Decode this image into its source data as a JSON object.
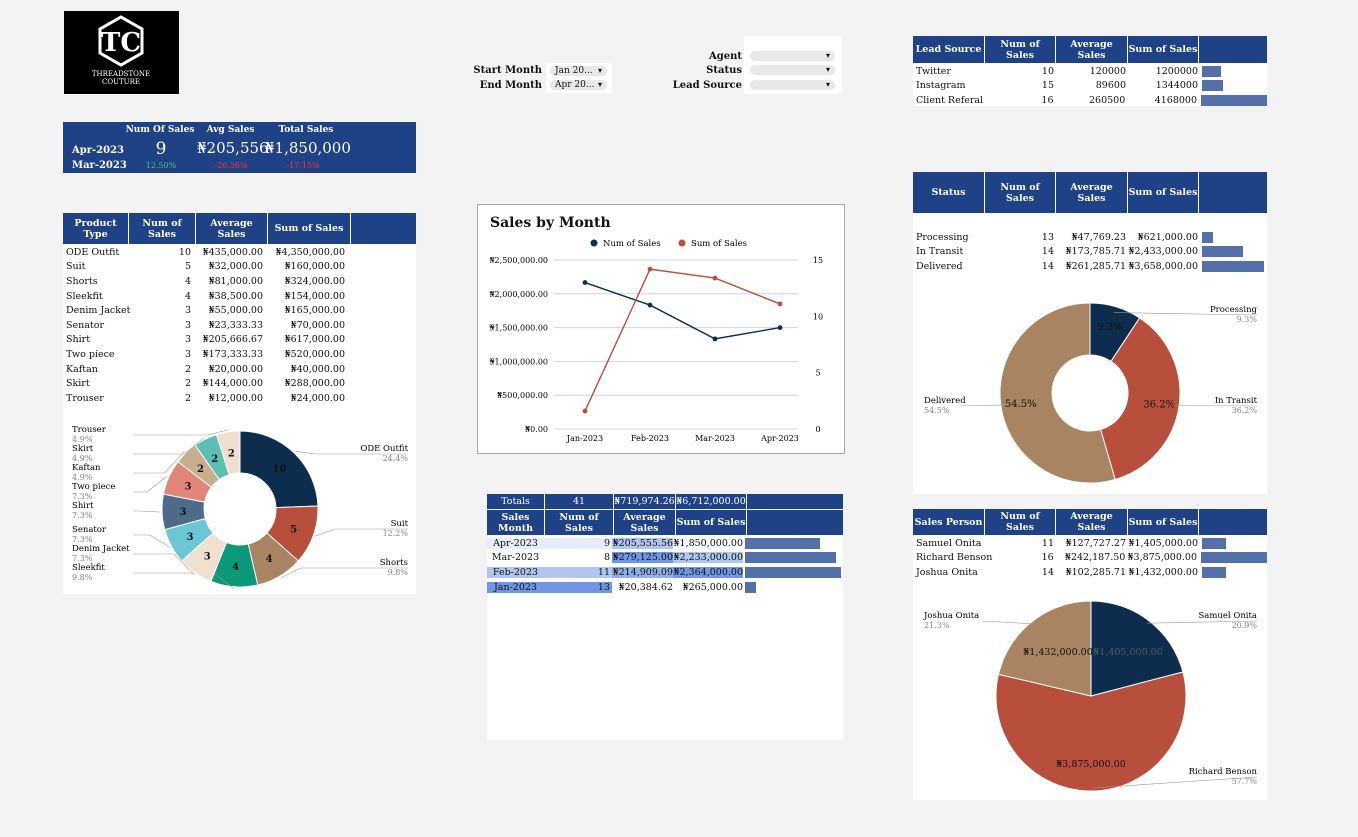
{
  "logo": {
    "initials": "TC",
    "line1": "THREADSTONE",
    "line2": "COUTURE"
  },
  "filters": {
    "start_month_label": "Start Month",
    "start_month_value": "Jan 20...",
    "end_month_label": "End Month",
    "end_month_value": "Apr 20...",
    "agent_label": "Agent",
    "status_label": "Status",
    "lead_source_label": "Lead Source"
  },
  "kpi": {
    "headers": [
      "Num Of Sales",
      "Avg Sales",
      "Total Sales"
    ],
    "current_month": "Apr-2023",
    "prev_month": "Mar-2023",
    "num_sales": "9",
    "avg_sales": "₦205,556",
    "total_sales": "₦1,850,000",
    "num_change": "12.50%",
    "avg_change": "-26.36%",
    "total_change": "-17.15%"
  },
  "product": {
    "headers": [
      "Product Type",
      "Num of Sales",
      "Average Sales",
      "Sum of Sales"
    ],
    "rows": [
      {
        "name": "ODE Outfit",
        "num": "10",
        "avg": "₦435,000.00",
        "sum": "₦4,350,000.00"
      },
      {
        "name": "Suit",
        "num": "5",
        "avg": "₦32,000.00",
        "sum": "₦160,000.00"
      },
      {
        "name": "Shorts",
        "num": "4",
        "avg": "₦81,000.00",
        "sum": "₦324,000.00"
      },
      {
        "name": "Sleekfit",
        "num": "4",
        "avg": "₦38,500.00",
        "sum": "₦154,000.00"
      },
      {
        "name": "Denim Jacket",
        "num": "3",
        "avg": "₦55,000.00",
        "sum": "₦165,000.00"
      },
      {
        "name": "Senator",
        "num": "3",
        "avg": "₦23,333.33",
        "sum": "₦70,000.00"
      },
      {
        "name": "Shirt",
        "num": "3",
        "avg": "₦205,666.67",
        "sum": "₦617,000.00"
      },
      {
        "name": "Two piece",
        "num": "3",
        "avg": "₦173,333.33",
        "sum": "₦520,000.00"
      },
      {
        "name": "Kaftan",
        "num": "2",
        "avg": "₦20,000.00",
        "sum": "₦40,000.00"
      },
      {
        "name": "Skirt",
        "num": "2",
        "avg": "₦144,000.00",
        "sum": "₦288,000.00"
      },
      {
        "name": "Trouser",
        "num": "2",
        "avg": "₦12,000.00",
        "sum": "₦24,000.00"
      }
    ]
  },
  "lead": {
    "headers": [
      "Lead Source",
      "Num of Sales",
      "Average Sales",
      "Sum of Sales"
    ],
    "rows": [
      {
        "name": "Twitter",
        "num": "10",
        "avg": "120000",
        "sum": "1200000",
        "bar": 0.288
      },
      {
        "name": "Instagram",
        "num": "15",
        "avg": "89600",
        "sum": "1344000",
        "bar": 0.322
      },
      {
        "name": "Client Referal",
        "num": "16",
        "avg": "260500",
        "sum": "4168000",
        "bar": 1.0
      }
    ]
  },
  "status": {
    "headers": [
      "Status",
      "Num of Sales",
      "Average Sales",
      "Sum of Sales"
    ],
    "rows": [
      {
        "name": "Processing",
        "num": "13",
        "avg": "₦47,769.23",
        "sum": "₦621,000.00",
        "bar": 0.17
      },
      {
        "name": "In Transit",
        "num": "14",
        "avg": "₦173,785.71",
        "sum": "₦2,433,000.00",
        "bar": 0.665
      },
      {
        "name": "Delivered",
        "num": "14",
        "avg": "₦261,285.71",
        "sum": "₦3,658,000.00",
        "bar": 1.0
      }
    ]
  },
  "monthly": {
    "totals_label": "Totals",
    "totals_num": "41",
    "totals_avg": "₦719,974.26",
    "totals_sum": "₦6,712,000.00",
    "headers": [
      "Sales Month",
      "Num of Sales",
      "Average Sales",
      "Sum of Sales"
    ],
    "rows": [
      {
        "month": "Apr-2023",
        "num": "9",
        "avg": "₦205,555.56",
        "sum": "₦1,850,000.00",
        "bar": 0.782
      },
      {
        "month": "Mar-2023",
        "num": "8",
        "avg": "₦279,125.00",
        "sum": "₦2,233,000.00",
        "bar": 0.945
      },
      {
        "month": "Feb-2023",
        "num": "11",
        "avg": "₦214,909.09",
        "sum": "₦2,364,000.00",
        "bar": 1.0
      },
      {
        "month": "Jan-2023",
        "num": "13",
        "avg": "₦20,384.62",
        "sum": "₦265,000.00",
        "bar": 0.112
      }
    ]
  },
  "salesperson": {
    "headers": [
      "Sales Person",
      "Num of Sales",
      "Average Sales",
      "Sum of Sales"
    ],
    "rows": [
      {
        "name": "Samuel Onita",
        "num": "11",
        "avg": "₦127,727.27",
        "sum": "₦1,405,000.00",
        "bar": 0.363
      },
      {
        "name": "Richard Benson",
        "num": "16",
        "avg": "₦242,187.50",
        "sum": "₦3,875,000.00",
        "bar": 1.0
      },
      {
        "name": "Joshua Onita",
        "num": "14",
        "avg": "₦102,285.71",
        "sum": "₦1,432,000.00",
        "bar": 0.37
      }
    ]
  },
  "colors": {
    "navy": "#1f4287",
    "dark_navy": "#0c2d4e",
    "rust": "#b84f3c",
    "tan": "#a98462",
    "bar": "#5470a8"
  },
  "chart_data": [
    {
      "type": "line",
      "title": "Sales by Month",
      "categories": [
        "Jan-2023",
        "Feb-2023",
        "Mar-2023",
        "Apr-2023"
      ],
      "series": [
        {
          "name": "Num of Sales",
          "axis": "right",
          "values": [
            13,
            11,
            8,
            9
          ],
          "color": "#0c2d4e"
        },
        {
          "name": "Sum of Sales",
          "axis": "left",
          "values": [
            265000,
            2364000,
            2233000,
            1850000
          ],
          "color": "#b84f3c"
        }
      ],
      "y_left_ticks": [
        "₦0.00",
        "₦500,000.00",
        "₦1,000,000.00",
        "₦1,500,000.00",
        "₦2,000,000.00",
        "₦2,500,000.00"
      ],
      "y_right_ticks": [
        "0",
        "5",
        "10",
        "15"
      ],
      "ylim_left": [
        0,
        2500000
      ],
      "ylim_right": [
        0,
        15
      ],
      "legend": "top",
      "grid": true
    },
    {
      "type": "pie",
      "subtype": "donut",
      "categories": [
        "ODE Outfit",
        "Suit",
        "Shorts",
        "Sleekfit",
        "Denim Jacket",
        "Senator",
        "Shirt",
        "Two piece",
        "Kaftan",
        "Skirt",
        "Trouser"
      ],
      "values": [
        10,
        5,
        4,
        4,
        3,
        3,
        3,
        3,
        2,
        2,
        2
      ],
      "percent_labels": [
        "24.4%",
        "12.2%",
        "9.8%",
        "9.8%",
        "7.3%",
        "7.3%",
        "7.3%",
        "7.3%",
        "4.9%",
        "4.9%",
        "4.9%"
      ],
      "colors": [
        "#0c2d4e",
        "#b84f3c",
        "#a98462",
        "#0a9a7a",
        "#f0e0d0",
        "#6bc6d6",
        "#4d6b88",
        "#e0877a",
        "#c8ad8f",
        "#5bbfb2",
        "#eedfd0"
      ]
    },
    {
      "type": "pie",
      "subtype": "donut",
      "categories": [
        "Processing",
        "In Transit",
        "Delivered"
      ],
      "values": [
        9.3,
        36.2,
        54.5
      ],
      "percent_labels": [
        "9.3%",
        "36.2%",
        "54.5%"
      ],
      "colors": [
        "#0c2d4e",
        "#b84f3c",
        "#a98462"
      ]
    },
    {
      "type": "pie",
      "categories": [
        "Samuel Onita",
        "Richard Benson",
        "Joshua Onita"
      ],
      "values": [
        1405000,
        3875000,
        1432000
      ],
      "value_labels": [
        "₦1,405,000.00",
        "₦3,875,000.00",
        "₦1,432,000.00"
      ],
      "percent_labels": [
        "20.9%",
        "57.7%",
        "21.3%"
      ],
      "colors": [
        "#0c2d4e",
        "#b84f3c",
        "#a98462"
      ]
    }
  ]
}
